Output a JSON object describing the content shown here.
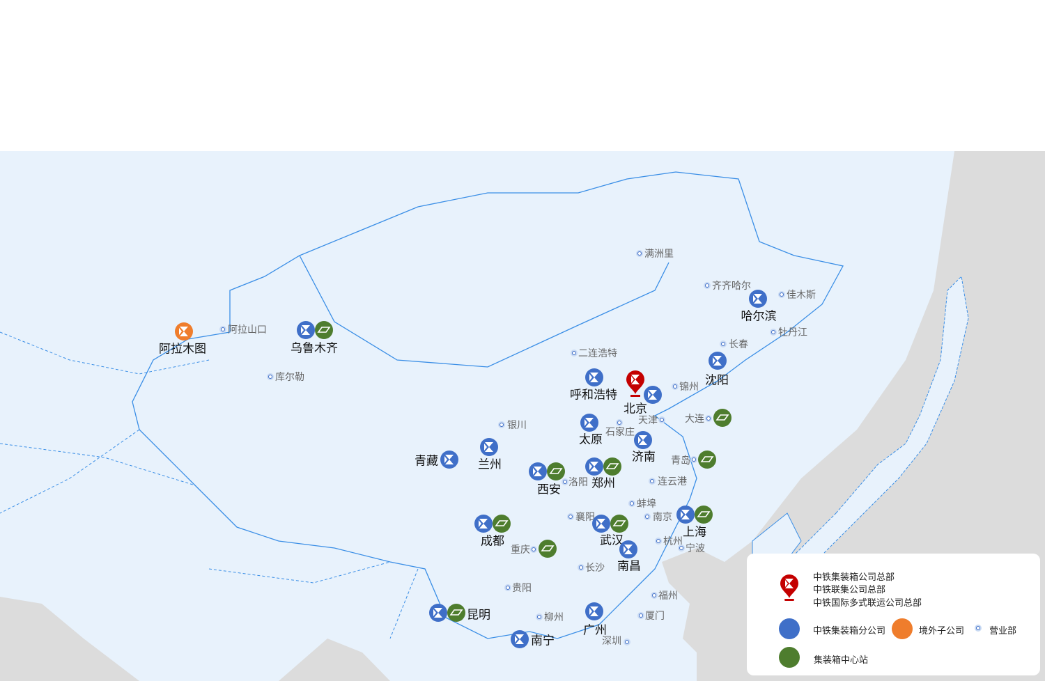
{
  "colors": {
    "branch": "#3f6fc8",
    "hub": "#4e7d2e",
    "overseas": "#ef7d2c",
    "hq": "#c40000",
    "land": "#e8f2fc",
    "sea": "#dcdcdc",
    "border": "#3a8ee6"
  },
  "places": [
    {
      "name": "阿拉木图",
      "markers": [
        "overseas"
      ],
      "major": true
    },
    {
      "name": "阿拉山口",
      "markers": [
        "office"
      ]
    },
    {
      "name": "乌鲁木齐",
      "markers": [
        "branch",
        "hub"
      ],
      "major": true
    },
    {
      "name": "库尔勒",
      "markers": [
        "office"
      ]
    },
    {
      "name": "满洲里",
      "markers": [
        "office"
      ]
    },
    {
      "name": "齐齐哈尔",
      "markers": [
        "office"
      ]
    },
    {
      "name": "佳木斯",
      "markers": [
        "office"
      ]
    },
    {
      "name": "哈尔滨",
      "markers": [
        "branch"
      ],
      "major": true
    },
    {
      "name": "牡丹江",
      "markers": [
        "office"
      ]
    },
    {
      "name": "长春",
      "markers": [
        "office"
      ]
    },
    {
      "name": "沈阳",
      "markers": [
        "branch"
      ],
      "major": true
    },
    {
      "name": "二连浩特",
      "markers": [
        "office"
      ]
    },
    {
      "name": "呼和浩特",
      "markers": [
        "branch"
      ],
      "major": true
    },
    {
      "name": "北京",
      "markers": [
        "hq",
        "branch"
      ],
      "major": true
    },
    {
      "name": "锦州",
      "markers": [
        "office"
      ]
    },
    {
      "name": "天津",
      "markers": [
        "office"
      ]
    },
    {
      "name": "大连",
      "markers": [
        "office",
        "hub"
      ]
    },
    {
      "name": "银川",
      "markers": [
        "office"
      ]
    },
    {
      "name": "太原",
      "markers": [
        "branch"
      ],
      "major": true
    },
    {
      "name": "石家庄",
      "markers": [
        "office"
      ]
    },
    {
      "name": "济南",
      "markers": [
        "branch"
      ],
      "major": true
    },
    {
      "name": "青岛",
      "markers": [
        "office",
        "hub"
      ]
    },
    {
      "name": "青藏",
      "markers": [
        "branch"
      ],
      "major": true
    },
    {
      "name": "兰州",
      "markers": [
        "branch"
      ],
      "major": true
    },
    {
      "name": "西安",
      "markers": [
        "branch",
        "hub"
      ],
      "major": true
    },
    {
      "name": "洛阳",
      "markers": [
        "office"
      ]
    },
    {
      "name": "郑州",
      "markers": [
        "branch",
        "hub"
      ],
      "major": true
    },
    {
      "name": "连云港",
      "markers": [
        "office"
      ]
    },
    {
      "name": "蚌埠",
      "markers": [
        "office"
      ]
    },
    {
      "name": "襄阳",
      "markers": [
        "office"
      ]
    },
    {
      "name": "南京",
      "markers": [
        "office"
      ]
    },
    {
      "name": "成都",
      "markers": [
        "branch",
        "hub"
      ],
      "major": true
    },
    {
      "name": "武汉",
      "markers": [
        "branch",
        "hub"
      ],
      "major": true
    },
    {
      "name": "上海",
      "markers": [
        "branch",
        "hub"
      ],
      "major": true
    },
    {
      "name": "杭州",
      "markers": [
        "office"
      ]
    },
    {
      "name": "宁波",
      "markers": [
        "office"
      ]
    },
    {
      "name": "重庆",
      "markers": [
        "office",
        "hub"
      ]
    },
    {
      "name": "南昌",
      "markers": [
        "branch"
      ],
      "major": true
    },
    {
      "name": "长沙",
      "markers": [
        "office"
      ]
    },
    {
      "name": "贵阳",
      "markers": [
        "office"
      ]
    },
    {
      "name": "福州",
      "markers": [
        "office"
      ]
    },
    {
      "name": "昆明",
      "markers": [
        "branch",
        "hub"
      ],
      "major": true
    },
    {
      "name": "柳州",
      "markers": [
        "office"
      ]
    },
    {
      "name": "广州",
      "markers": [
        "branch"
      ],
      "major": true
    },
    {
      "name": "厦门",
      "markers": [
        "office"
      ]
    },
    {
      "name": "南宁",
      "markers": [
        "branch"
      ],
      "major": true
    },
    {
      "name": "深圳",
      "markers": [
        "office"
      ]
    }
  ],
  "legend": {
    "hq_lines": [
      "中铁集装箱公司总部",
      "中铁联集公司总部",
      "中铁国际多式联运公司总部"
    ],
    "branch": "中铁集装箱分公司",
    "overseas": "境外子公司",
    "office": "营业部",
    "hub": "集装箱中心站"
  }
}
